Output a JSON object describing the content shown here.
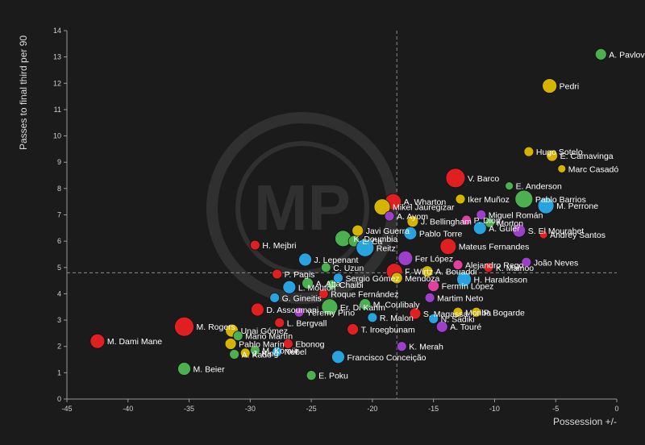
{
  "chart_data": {
    "type": "scatter",
    "xlabel": "Possession +/-",
    "ylabel": "Passes to final third per 90",
    "xlim": [
      -45,
      0
    ],
    "ylim": [
      0,
      14
    ],
    "xticks": [
      -45,
      -40,
      -35,
      -30,
      -25,
      -20,
      -15,
      -10,
      -5,
      0
    ],
    "yticks": [
      0,
      1,
      2,
      3,
      4,
      5,
      6,
      7,
      8,
      9,
      10,
      11,
      12,
      13,
      14
    ],
    "reference_lines": {
      "x": -18,
      "y": 4.8
    },
    "watermark": "MP",
    "points": [
      {
        "label": "A. Pavlović",
        "x": -1.3,
        "y": 13.1,
        "size": 7,
        "color": "#4caf50"
      },
      {
        "label": "Pedri",
        "x": -5.5,
        "y": 11.9,
        "size": 9,
        "color": "#d4b400"
      },
      {
        "label": "Hugo Sotelo",
        "x": -7.2,
        "y": 9.4,
        "size": 6,
        "color": "#d4b400"
      },
      {
        "label": "E. Camavinga",
        "x": -5.3,
        "y": 9.25,
        "size": 7,
        "color": "#d4b400"
      },
      {
        "label": "Marc Casadó",
        "x": -4.5,
        "y": 8.75,
        "size": 5,
        "color": "#d4b400"
      },
      {
        "label": "V. Barco",
        "x": -13.2,
        "y": 8.4,
        "size": 12,
        "color": "#e02020"
      },
      {
        "label": "E. Anderson",
        "x": -8.8,
        "y": 8.1,
        "size": 5,
        "color": "#4caf50"
      },
      {
        "label": "Iker Muñoz",
        "x": -12.8,
        "y": 7.6,
        "size": 6,
        "color": "#d4b400"
      },
      {
        "label": "Pablo Barrios",
        "x": -7.6,
        "y": 7.6,
        "size": 11,
        "color": "#4caf50"
      },
      {
        "label": "M. Perrone",
        "x": -5.8,
        "y": 7.35,
        "size": 10,
        "color": "#29a3e0"
      },
      {
        "label": "A. Wharton",
        "x": -18.3,
        "y": 7.5,
        "size": 10,
        "color": "#e02020"
      },
      {
        "label": "Mikel Jauregizar",
        "x": -19.2,
        "y": 7.3,
        "size": 10,
        "color": "#d4b400"
      },
      {
        "label": "A. Ayom",
        "x": -18.6,
        "y": 6.95,
        "size": 6,
        "color": "#9c3fc9"
      },
      {
        "label": "Miguel Román",
        "x": -11.1,
        "y": 7.0,
        "size": 6,
        "color": "#9c3fc9"
      },
      {
        "label": "J. Bellingham",
        "x": -16.7,
        "y": 6.75,
        "size": 7,
        "color": "#d4b400"
      },
      {
        "label": "P. Diop",
        "x": -12.3,
        "y": 6.8,
        "size": 6,
        "color": "#e040a0"
      },
      {
        "label": "Morton",
        "x": -10.4,
        "y": 6.7,
        "size": 6,
        "color": "#4caf50"
      },
      {
        "label": "A. Gulér",
        "x": -11.2,
        "y": 6.5,
        "size": 8,
        "color": "#29a3e0"
      },
      {
        "label": "S. El Mourabet",
        "x": -8.0,
        "y": 6.4,
        "size": 8,
        "color": "#9c3fc9"
      },
      {
        "label": "Andrey Santos",
        "x": -6.0,
        "y": 6.25,
        "size": 5,
        "color": "#e02020"
      },
      {
        "label": "Javi Guerra",
        "x": -21.2,
        "y": 6.4,
        "size": 7,
        "color": "#d4b400"
      },
      {
        "label": "Pablo Torre",
        "x": -16.9,
        "y": 6.3,
        "size": 8,
        "color": "#29a3e0"
      },
      {
        "label": "H. Mejbri",
        "x": -29.6,
        "y": 5.85,
        "size": 6,
        "color": "#e02020"
      },
      {
        "label": "K. Doumbia",
        "x": -22.4,
        "y": 6.1,
        "size": 10,
        "color": "#4caf50"
      },
      {
        "label": "L. Ca",
        "x": -21.5,
        "y": 6.0,
        "size": 7,
        "color": "#4caf50"
      },
      {
        "label": "Reitz",
        "x": -20.6,
        "y": 5.75,
        "size": 11,
        "color": "#29a3e0"
      },
      {
        "label": "Mateus Fernandes",
        "x": -13.8,
        "y": 5.8,
        "size": 10,
        "color": "#e02020"
      },
      {
        "label": "J. Lepenant",
        "x": -25.5,
        "y": 5.3,
        "size": 8,
        "color": "#29a3e0"
      },
      {
        "label": "Fer López",
        "x": -17.3,
        "y": 5.35,
        "size": 9,
        "color": "#9c3fc9"
      },
      {
        "label": "P. Pagis",
        "x": -27.8,
        "y": 4.75,
        "size": 6,
        "color": "#e02020"
      },
      {
        "label": "C. Uzun",
        "x": -23.8,
        "y": 5.0,
        "size": 6,
        "color": "#4caf50"
      },
      {
        "label": "A. Bouaddi",
        "x": -15.5,
        "y": 4.85,
        "size": 7,
        "color": "#d4b400"
      },
      {
        "label": "Alejandro Rego",
        "x": -13.0,
        "y": 5.1,
        "size": 6,
        "color": "#e040a0"
      },
      {
        "label": "K. Mainoo",
        "x": -10.5,
        "y": 5.0,
        "size": 6,
        "color": "#e02020"
      },
      {
        "label": "João Neves",
        "x": -7.4,
        "y": 5.2,
        "size": 6,
        "color": "#9c3fc9"
      },
      {
        "label": "F. Wirtz",
        "x": -18.2,
        "y": 4.85,
        "size": 10,
        "color": "#e02020"
      },
      {
        "label": "L. Mouton",
        "x": -26.8,
        "y": 4.25,
        "size": 8,
        "color": "#29a3e0"
      },
      {
        "label": "A. Atta",
        "x": -25.3,
        "y": 4.4,
        "size": 7,
        "color": "#4caf50"
      },
      {
        "label": "Chaibi",
        "x": -23.3,
        "y": 4.35,
        "size": 6,
        "color": "#4caf50"
      },
      {
        "label": "Sergio Gómez",
        "x": -22.8,
        "y": 4.6,
        "size": 6,
        "color": "#29a3e0"
      },
      {
        "label": "Mendoza",
        "x": -18.0,
        "y": 4.6,
        "size": 7,
        "color": "#d4b400"
      },
      {
        "label": "H. Haraldsson",
        "x": -12.5,
        "y": 4.55,
        "size": 9,
        "color": "#29a3e0"
      },
      {
        "label": "Fermín López",
        "x": -15.0,
        "y": 4.3,
        "size": 7,
        "color": "#e040a0"
      },
      {
        "label": "Roque Fernández",
        "x": -24.0,
        "y": 4.0,
        "size": 6,
        "color": "#e02020"
      },
      {
        "label": "G. Gineitis",
        "x": -28.0,
        "y": 3.85,
        "size": 6,
        "color": "#29a3e0"
      },
      {
        "label": "Martim Neto",
        "x": -15.3,
        "y": 3.85,
        "size": 6,
        "color": "#9c3fc9"
      },
      {
        "label": "M. Coulibaly",
        "x": -20.6,
        "y": 3.6,
        "size": 7,
        "color": "#4caf50"
      },
      {
        "label": "D. Assoumani",
        "x": -29.4,
        "y": 3.4,
        "size": 8,
        "color": "#e02020"
      },
      {
        "label": "Yéremy Pino",
        "x": -26.0,
        "y": 3.3,
        "size": 6,
        "color": "#9c3fc9"
      },
      {
        "label": "Er. Di Karim",
        "x": -23.5,
        "y": 3.5,
        "size": 10,
        "color": "#4caf50"
      },
      {
        "label": "S. Magassa",
        "x": -16.5,
        "y": 3.25,
        "size": 7,
        "color": "#e02020"
      },
      {
        "label": "Moriba",
        "x": -13.0,
        "y": 3.3,
        "size": 6,
        "color": "#d4b400"
      },
      {
        "label": "M. Rogers",
        "x": -35.4,
        "y": 2.75,
        "size": 12,
        "color": "#e02020"
      },
      {
        "label": "L. Bergvall",
        "x": -27.6,
        "y": 2.9,
        "size": 6,
        "color": "#e02020"
      },
      {
        "label": "R. Malon",
        "x": -20.0,
        "y": 3.1,
        "size": 6,
        "color": "#29a3e0"
      },
      {
        "label": "N. Sadiki",
        "x": -15.0,
        "y": 3.05,
        "size": 6,
        "color": "#29a3e0"
      },
      {
        "label": "P. Bogarde",
        "x": -11.5,
        "y": 3.3,
        "size": 6,
        "color": "#d4b400"
      },
      {
        "label": "A. Touré",
        "x": -14.3,
        "y": 2.75,
        "size": 7,
        "color": "#9c3fc9"
      },
      {
        "label": "Unai Gómez",
        "x": -31.5,
        "y": 2.6,
        "size": 8,
        "color": "#d4b400"
      },
      {
        "label": "Mario Martín",
        "x": -31.0,
        "y": 2.4,
        "size": 6,
        "color": "#4caf50"
      },
      {
        "label": "T. Iroegbunam",
        "x": -21.6,
        "y": 2.65,
        "size": 7,
        "color": "#e02020"
      },
      {
        "label": "M. Dami Mane",
        "x": -42.5,
        "y": 2.2,
        "size": 9,
        "color": "#e02020"
      },
      {
        "label": "Pablo Marín",
        "x": -31.6,
        "y": 2.1,
        "size": 7,
        "color": "#d4b400"
      },
      {
        "label": "M. Kömür",
        "x": -29.6,
        "y": 1.85,
        "size": 6,
        "color": "#4caf50"
      },
      {
        "label": "Nebel",
        "x": -27.8,
        "y": 1.8,
        "size": 6,
        "color": "#29a3e0"
      },
      {
        "label": "Ebonog",
        "x": -26.9,
        "y": 2.1,
        "size": 6,
        "color": "#e02020"
      },
      {
        "label": "K. Merah",
        "x": -17.6,
        "y": 2.0,
        "size": 6,
        "color": "#9c3fc9"
      },
      {
        "label": "J. King",
        "x": -30.4,
        "y": 1.75,
        "size": 6,
        "color": "#d4b400"
      },
      {
        "label": "A. Kado",
        "x": -31.3,
        "y": 1.7,
        "size": 6,
        "color": "#4caf50"
      },
      {
        "label": "Francisco Conceição",
        "x": -22.8,
        "y": 1.6,
        "size": 8,
        "color": "#29a3e0"
      },
      {
        "label": "M. Beier",
        "x": -35.4,
        "y": 1.15,
        "size": 8,
        "color": "#4caf50"
      },
      {
        "label": "E. Poku",
        "x": -25.0,
        "y": 0.9,
        "size": 6,
        "color": "#4caf50"
      }
    ]
  }
}
